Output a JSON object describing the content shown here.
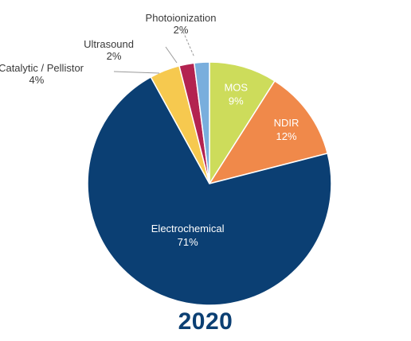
{
  "chart_data": {
    "type": "pie",
    "title": "2020",
    "slices": [
      {
        "label": "MOS",
        "value": 9,
        "value_label": "9%",
        "color": "#cddc5b"
      },
      {
        "label": "NDIR",
        "value": 12,
        "value_label": "12%",
        "color": "#f0894a"
      },
      {
        "label": "Electrochemical",
        "value": 71,
        "value_label": "71%",
        "color": "#0b3f73"
      },
      {
        "label": "Catalytic / Pellistor",
        "value": 4,
        "value_label": "4%",
        "color": "#f6c94f"
      },
      {
        "label": "Ultrasound",
        "value": 2,
        "value_label": "2%",
        "color": "#b32350"
      },
      {
        "label": "Photoionization",
        "value": 2,
        "value_label": "2%",
        "color": "#79aedd"
      }
    ],
    "colors": {
      "title": "#0b3f73",
      "leader_line": "#9a9a9a",
      "outer_label_text": "#3a3a3a",
      "inner_label_text": "#ffffff"
    }
  }
}
